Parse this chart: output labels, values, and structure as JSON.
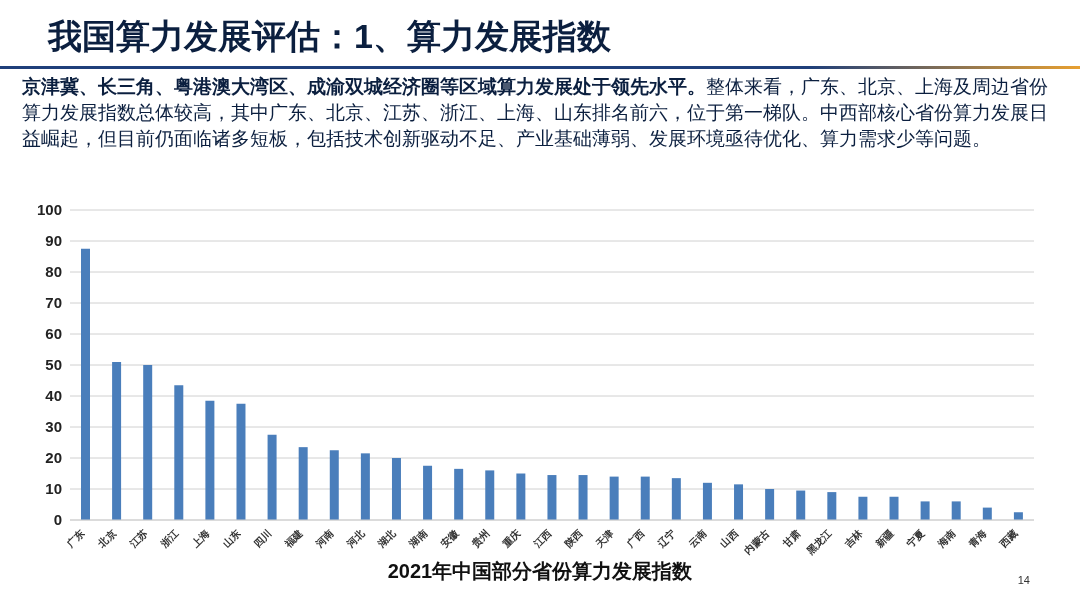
{
  "chart_data": {
    "type": "bar",
    "title": "我国算力发展评估：1、算力发展指数",
    "subtitle": "京津冀、长三角、粤港澳大湾区、成渝双城经济圈等区域算力发展处于领先水平。",
    "annotations": [
      "整体来看，广东、北京、上海及周边省份算力发展指数总体较高，其中广东、北京、江苏、浙江、上海、山东排名前六，位于第一梯队。中西部核心省份算力发展日益崛起，但目前仍面临诸多短板，包括技术创新驱动不足、产业基础薄弱、发展环境亟待优化、算力需求少等问题。",
      "14"
    ],
    "xlabel": "2021年中国部分省份算力发展指数",
    "categories": [
      "广东",
      "北京",
      "江苏",
      "浙江",
      "上海",
      "山东",
      "四川",
      "福建",
      "河南",
      "河北",
      "湖北",
      "湖南",
      "安徽",
      "贵州",
      "重庆",
      "江西",
      "陕西",
      "天津",
      "广西",
      "辽宁",
      "云南",
      "山西",
      "内蒙古",
      "甘肃",
      "黑龙江",
      "吉林",
      "新疆",
      "宁夏",
      "海南",
      "青海",
      "西藏"
    ],
    "values": [
      87.5,
      51,
      50,
      43.5,
      38.5,
      37.5,
      27.5,
      23.5,
      22.5,
      21.5,
      20,
      17.5,
      16.5,
      16,
      15,
      14.5,
      14.5,
      14,
      14,
      13.5,
      12,
      11.5,
      10,
      9.5,
      9,
      7.5,
      7.5,
      6,
      6,
      4,
      2.5
    ],
    "color": "#4a7ebb",
    "ylim": [
      0,
      100
    ],
    "yticks": [
      0,
      10,
      20,
      30,
      40,
      50,
      60,
      70,
      80,
      90,
      100
    ],
    "grid": "y"
  }
}
